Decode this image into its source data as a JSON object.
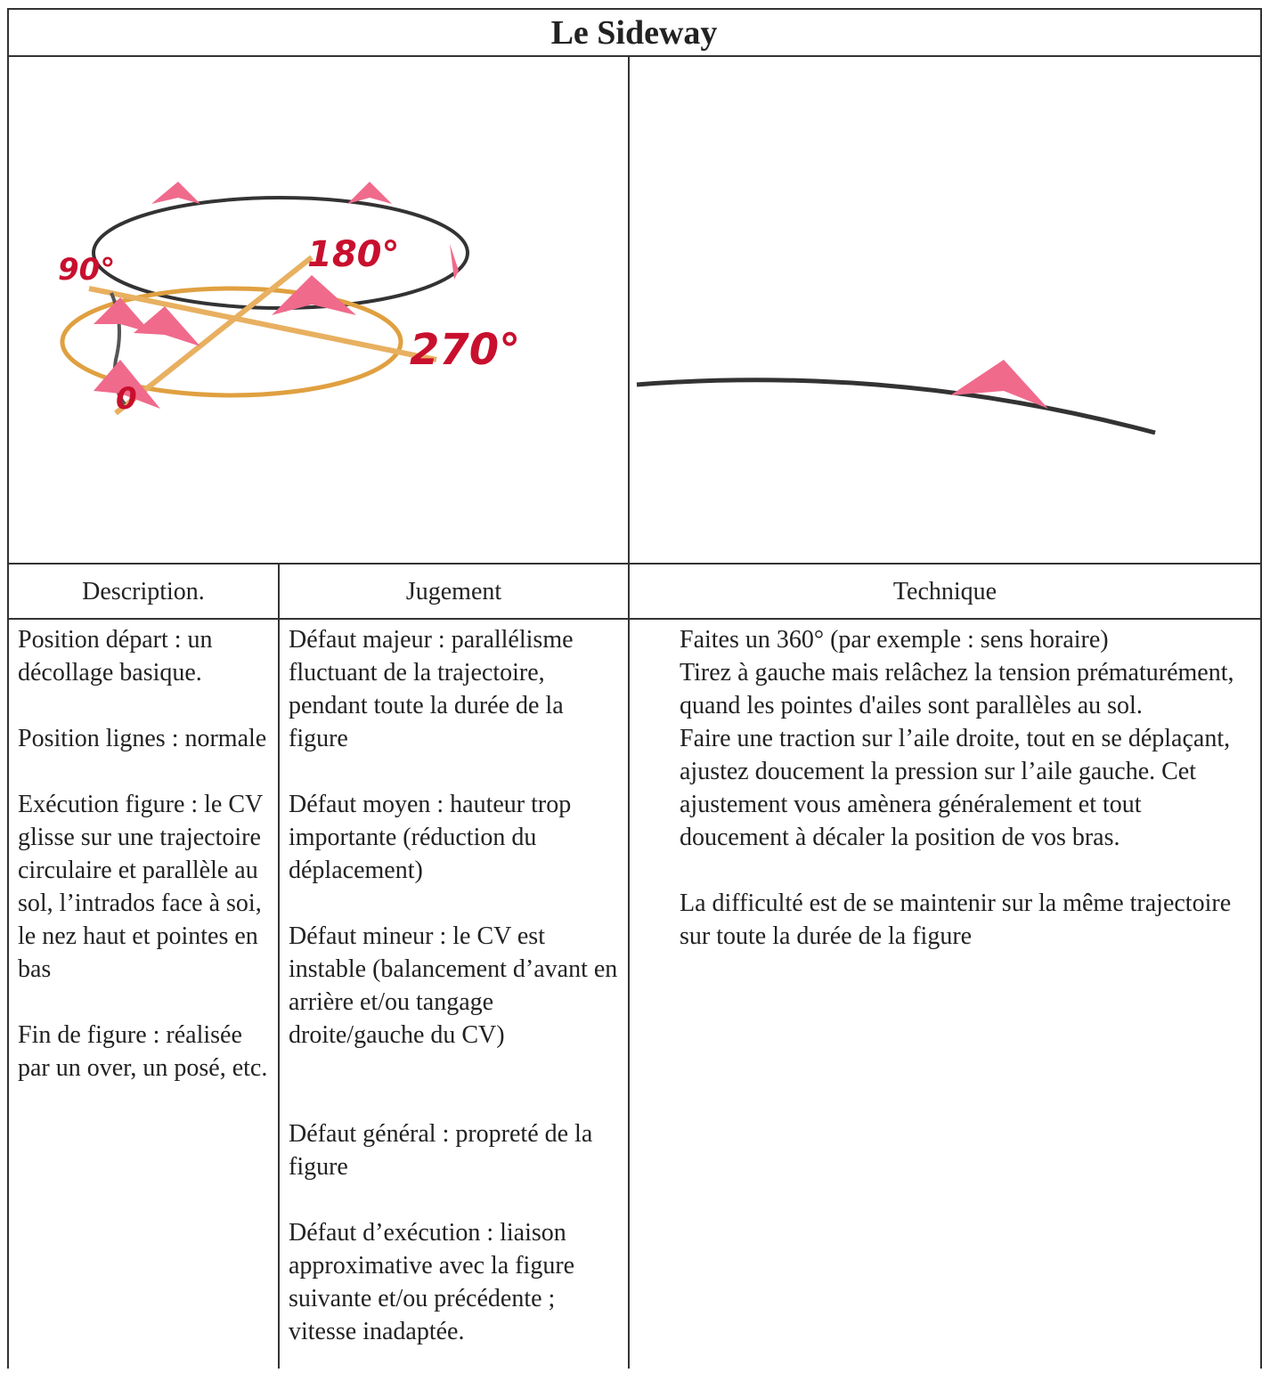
{
  "header": {
    "title": "Le Sideway"
  },
  "illustrations": {
    "left": {
      "labels": [
        "90°",
        "180°",
        "270°",
        "0"
      ]
    }
  },
  "table": {
    "headers": [
      "Description.",
      "Jugement",
      "Technique"
    ],
    "columns": [
      [
        "Position départ : un décollage basique.",
        "Position lignes : normale",
        "Exécution figure : le CV glisse sur une trajectoire circulaire et parallèle au sol, l’intrados face à soi, le nez haut et pointes en bas",
        "Fin de figure : réalisée par un over, un posé, etc."
      ],
      [
        "Défaut majeur : parallélisme fluctuant de la trajectoire, pendant toute la durée de la figure",
        "Défaut moyen : hauteur trop importante (réduction du déplacement)",
        "Défaut mineur : le CV est instable (balancement d’avant en arrière et/ou tangage droite/gauche du CV)",
        "Défaut général : propreté de la figure",
        "Défaut d’exécution : liaison approximative avec la figure suivante  et/ou précédente ; vitesse inadaptée."
      ],
      [
        "Faites un 360° (par exemple : sens horaire)",
        "Tirez à gauche mais relâchez la tension prématurément, quand les pointes d'ailes sont parallèles au sol.",
        "Faire une traction sur l’aile droite, tout en se déplaçant, ajustez doucement la pression sur l’aile gauche. Cet ajustement vous amènera généralement et tout doucement à décaler la position de vos bras.",
        "La difficulté est de se maintenir sur la même trajectoire sur toute la durée de la figure"
      ]
    ]
  }
}
